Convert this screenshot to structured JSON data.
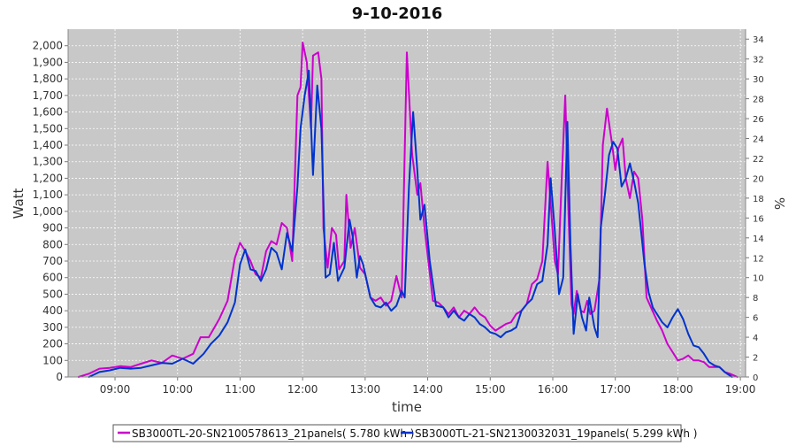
{
  "chart_data": {
    "type": "line",
    "title": "9-10-2016",
    "xlabel": "time",
    "ylabel": "Watt",
    "y2label": "%",
    "xlim": [
      "08:15",
      "19:05"
    ],
    "ylim": [
      0,
      2100
    ],
    "y2lim": [
      0,
      35
    ],
    "x_ticks": [
      "09:00",
      "10:00",
      "11:00",
      "12:00",
      "13:00",
      "14:00",
      "15:00",
      "16:00",
      "17:00",
      "18:00",
      "19:00"
    ],
    "y_ticks": [
      "0",
      "100",
      "200",
      "300",
      "400",
      "500",
      "600",
      "700",
      "800",
      "900",
      "1,000",
      "1,100",
      "1,200",
      "1,300",
      "1,400",
      "1,500",
      "1,600",
      "1,700",
      "1,800",
      "1,900",
      "2,000"
    ],
    "y2_ticks": [
      "0",
      "2",
      "4",
      "6",
      "8",
      "10",
      "12",
      "14",
      "16",
      "18",
      "20",
      "22",
      "24",
      "26",
      "28",
      "30",
      "32",
      "34"
    ],
    "grid": true,
    "legend_position": "bottom",
    "plot_background": "#c8c8c8",
    "series": [
      {
        "name": "SB3000TL-20-SN2100578613_21panels( 5.780 kWh )",
        "color": "#cc00cc",
        "points": [
          [
            "08:25",
            0
          ],
          [
            "08:35",
            20
          ],
          [
            "08:45",
            50
          ],
          [
            "08:55",
            55
          ],
          [
            "09:05",
            65
          ],
          [
            "09:15",
            60
          ],
          [
            "09:25",
            80
          ],
          [
            "09:35",
            100
          ],
          [
            "09:45",
            85
          ],
          [
            "09:55",
            130
          ],
          [
            "10:05",
            110
          ],
          [
            "10:15",
            140
          ],
          [
            "10:22",
            240
          ],
          [
            "10:30",
            240
          ],
          [
            "10:40",
            350
          ],
          [
            "10:48",
            460
          ],
          [
            "10:55",
            720
          ],
          [
            "11:00",
            810
          ],
          [
            "11:05",
            760
          ],
          [
            "11:10",
            700
          ],
          [
            "11:15",
            620
          ],
          [
            "11:20",
            600
          ],
          [
            "11:25",
            760
          ],
          [
            "11:30",
            820
          ],
          [
            "11:35",
            800
          ],
          [
            "11:40",
            930
          ],
          [
            "11:45",
            900
          ],
          [
            "11:50",
            700
          ],
          [
            "11:55",
            1700
          ],
          [
            "11:58",
            1750
          ],
          [
            "12:00",
            2020
          ],
          [
            "12:04",
            1900
          ],
          [
            "12:08",
            1500
          ],
          [
            "12:10",
            1940
          ],
          [
            "12:15",
            1960
          ],
          [
            "12:18",
            1800
          ],
          [
            "12:20",
            900
          ],
          [
            "12:24",
            660
          ],
          [
            "12:28",
            900
          ],
          [
            "12:32",
            860
          ],
          [
            "12:35",
            650
          ],
          [
            "12:40",
            700
          ],
          [
            "12:42",
            1100
          ],
          [
            "12:46",
            780
          ],
          [
            "12:50",
            900
          ],
          [
            "12:55",
            660
          ],
          [
            "13:00",
            620
          ],
          [
            "13:05",
            480
          ],
          [
            "13:10",
            460
          ],
          [
            "13:15",
            480
          ],
          [
            "13:20",
            430
          ],
          [
            "13:25",
            460
          ],
          [
            "13:30",
            610
          ],
          [
            "13:35",
            480
          ],
          [
            "13:40",
            1960
          ],
          [
            "13:45",
            1350
          ],
          [
            "13:50",
            1100
          ],
          [
            "13:53",
            1170
          ],
          [
            "13:57",
            900
          ],
          [
            "14:05",
            460
          ],
          [
            "14:10",
            450
          ],
          [
            "14:15",
            420
          ],
          [
            "14:20",
            380
          ],
          [
            "14:25",
            420
          ],
          [
            "14:30",
            360
          ],
          [
            "14:35",
            400
          ],
          [
            "14:40",
            380
          ],
          [
            "14:45",
            420
          ],
          [
            "14:50",
            380
          ],
          [
            "14:55",
            360
          ],
          [
            "15:00",
            310
          ],
          [
            "15:05",
            280
          ],
          [
            "15:10",
            300
          ],
          [
            "15:15",
            320
          ],
          [
            "15:20",
            330
          ],
          [
            "15:25",
            380
          ],
          [
            "15:30",
            400
          ],
          [
            "15:35",
            440
          ],
          [
            "15:40",
            560
          ],
          [
            "15:45",
            590
          ],
          [
            "15:50",
            700
          ],
          [
            "15:55",
            1300
          ],
          [
            "15:58",
            1050
          ],
          [
            "16:02",
            700
          ],
          [
            "16:05",
            620
          ],
          [
            "16:08",
            1100
          ],
          [
            "16:12",
            1700
          ],
          [
            "16:15",
            1000
          ],
          [
            "16:18",
            440
          ],
          [
            "16:20",
            380
          ],
          [
            "16:23",
            520
          ],
          [
            "16:27",
            400
          ],
          [
            "16:30",
            390
          ],
          [
            "16:33",
            460
          ],
          [
            "16:36",
            380
          ],
          [
            "16:40",
            400
          ],
          [
            "16:45",
            600
          ],
          [
            "16:48",
            1400
          ],
          [
            "16:52",
            1620
          ],
          [
            "16:57",
            1400
          ],
          [
            "17:00",
            1250
          ],
          [
            "17:03",
            1380
          ],
          [
            "17:07",
            1440
          ],
          [
            "17:10",
            1200
          ],
          [
            "17:14",
            1080
          ],
          [
            "17:18",
            1240
          ],
          [
            "17:22",
            1200
          ],
          [
            "17:26",
            950
          ],
          [
            "17:30",
            480
          ],
          [
            "17:35",
            410
          ],
          [
            "17:40",
            340
          ],
          [
            "17:45",
            280
          ],
          [
            "17:50",
            200
          ],
          [
            "17:55",
            150
          ],
          [
            "18:00",
            100
          ],
          [
            "18:05",
            110
          ],
          [
            "18:10",
            130
          ],
          [
            "18:15",
            100
          ],
          [
            "18:20",
            100
          ],
          [
            "18:25",
            90
          ],
          [
            "18:30",
            60
          ],
          [
            "18:40",
            60
          ],
          [
            "18:45",
            30
          ],
          [
            "18:50",
            20
          ],
          [
            "18:57",
            0
          ]
        ]
      },
      {
        "name": "SB3000TL-21-SN2130032031_19panels( 5.299 kWh )",
        "color": "#0033cc",
        "points": [
          [
            "08:35",
            0
          ],
          [
            "08:45",
            30
          ],
          [
            "08:55",
            40
          ],
          [
            "09:05",
            55
          ],
          [
            "09:15",
            50
          ],
          [
            "09:25",
            55
          ],
          [
            "09:35",
            70
          ],
          [
            "09:45",
            85
          ],
          [
            "09:55",
            80
          ],
          [
            "10:05",
            110
          ],
          [
            "10:15",
            80
          ],
          [
            "10:25",
            140
          ],
          [
            "10:32",
            200
          ],
          [
            "10:40",
            250
          ],
          [
            "10:48",
            330
          ],
          [
            "10:55",
            450
          ],
          [
            "11:00",
            680
          ],
          [
            "11:05",
            770
          ],
          [
            "11:10",
            650
          ],
          [
            "11:15",
            640
          ],
          [
            "11:20",
            580
          ],
          [
            "11:25",
            650
          ],
          [
            "11:30",
            780
          ],
          [
            "11:35",
            750
          ],
          [
            "11:40",
            650
          ],
          [
            "11:45",
            870
          ],
          [
            "11:50",
            760
          ],
          [
            "11:55",
            1150
          ],
          [
            "11:58",
            1500
          ],
          [
            "12:02",
            1700
          ],
          [
            "12:06",
            1850
          ],
          [
            "12:10",
            1220
          ],
          [
            "12:14",
            1760
          ],
          [
            "12:18",
            1500
          ],
          [
            "12:22",
            600
          ],
          [
            "12:26",
            620
          ],
          [
            "12:30",
            810
          ],
          [
            "12:34",
            580
          ],
          [
            "12:40",
            660
          ],
          [
            "12:45",
            950
          ],
          [
            "12:48",
            850
          ],
          [
            "12:52",
            600
          ],
          [
            "12:55",
            730
          ],
          [
            "12:58",
            680
          ],
          [
            "13:05",
            480
          ],
          [
            "13:10",
            430
          ],
          [
            "13:15",
            420
          ],
          [
            "13:20",
            450
          ],
          [
            "13:25",
            400
          ],
          [
            "13:30",
            430
          ],
          [
            "13:35",
            520
          ],
          [
            "13:38",
            480
          ],
          [
            "13:42",
            1150
          ],
          [
            "13:46",
            1600
          ],
          [
            "13:50",
            1250
          ],
          [
            "13:53",
            950
          ],
          [
            "13:57",
            1040
          ],
          [
            "14:02",
            700
          ],
          [
            "14:08",
            430
          ],
          [
            "14:15",
            420
          ],
          [
            "14:20",
            360
          ],
          [
            "14:25",
            400
          ],
          [
            "14:30",
            360
          ],
          [
            "14:35",
            340
          ],
          [
            "14:40",
            380
          ],
          [
            "14:45",
            360
          ],
          [
            "14:50",
            320
          ],
          [
            "14:55",
            300
          ],
          [
            "15:00",
            270
          ],
          [
            "15:05",
            260
          ],
          [
            "15:10",
            240
          ],
          [
            "15:15",
            270
          ],
          [
            "15:20",
            280
          ],
          [
            "15:25",
            300
          ],
          [
            "15:30",
            400
          ],
          [
            "15:35",
            440
          ],
          [
            "15:40",
            470
          ],
          [
            "15:45",
            560
          ],
          [
            "15:50",
            580
          ],
          [
            "15:55",
            800
          ],
          [
            "15:58",
            1200
          ],
          [
            "16:02",
            880
          ],
          [
            "16:06",
            500
          ],
          [
            "16:10",
            600
          ],
          [
            "16:14",
            1540
          ],
          [
            "16:17",
            800
          ],
          [
            "16:20",
            260
          ],
          [
            "16:24",
            500
          ],
          [
            "16:28",
            360
          ],
          [
            "16:32",
            280
          ],
          [
            "16:35",
            480
          ],
          [
            "16:40",
            300
          ],
          [
            "16:43",
            240
          ],
          [
            "16:46",
            900
          ],
          [
            "16:50",
            1100
          ],
          [
            "16:54",
            1340
          ],
          [
            "16:58",
            1420
          ],
          [
            "17:02",
            1380
          ],
          [
            "17:06",
            1150
          ],
          [
            "17:10",
            1200
          ],
          [
            "17:14",
            1290
          ],
          [
            "17:18",
            1180
          ],
          [
            "17:22",
            1050
          ],
          [
            "17:28",
            680
          ],
          [
            "17:32",
            510
          ],
          [
            "17:36",
            420
          ],
          [
            "17:40",
            380
          ],
          [
            "17:45",
            330
          ],
          [
            "17:50",
            300
          ],
          [
            "17:55",
            360
          ],
          [
            "18:00",
            410
          ],
          [
            "18:05",
            350
          ],
          [
            "18:10",
            260
          ],
          [
            "18:15",
            190
          ],
          [
            "18:20",
            180
          ],
          [
            "18:25",
            140
          ],
          [
            "18:30",
            90
          ],
          [
            "18:35",
            70
          ],
          [
            "18:40",
            60
          ],
          [
            "18:45",
            30
          ],
          [
            "18:52",
            0
          ]
        ]
      }
    ]
  }
}
